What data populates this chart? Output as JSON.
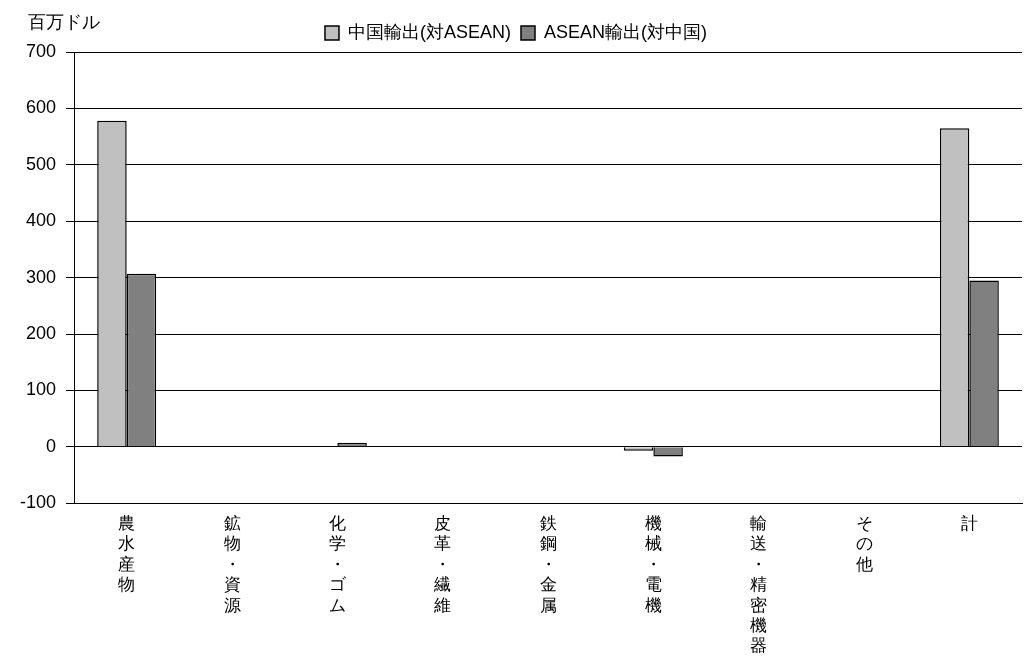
{
  "chart_data": {
    "type": "bar",
    "ylabel": "百万ドル",
    "categories": [
      "農水産物",
      "鉱物・資源",
      "化学・ゴム",
      "皮革・繊維",
      "鉄鋼・金属",
      "機械・電機",
      "輸送・精密機器",
      "その他",
      "計"
    ],
    "series": [
      {
        "name": "中国輸出(対ASEAN)",
        "color": "#c0c0c0",
        "values": [
          578,
          0,
          0,
          0,
          0,
          -7,
          0,
          0,
          565
        ]
      },
      {
        "name": "ASEAN輸出(対中国)",
        "color": "#808080",
        "values": [
          307,
          0,
          7,
          0,
          0,
          -17,
          0,
          0,
          295
        ]
      }
    ],
    "ylim": [
      -100,
      700
    ],
    "yticks": [
      -100,
      0,
      100,
      200,
      300,
      400,
      500,
      600,
      700
    ],
    "grid": "y",
    "legend": "top"
  }
}
